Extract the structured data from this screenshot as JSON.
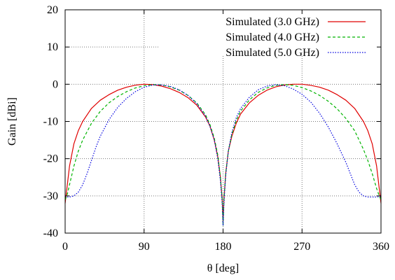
{
  "chart_data": {
    "type": "line",
    "title": "",
    "xlabel": "θ   [deg]",
    "ylabel": "Gain   [dBi]",
    "xlim": [
      0,
      360
    ],
    "ylim": [
      -40,
      20
    ],
    "xticks": [
      0,
      90,
      180,
      270,
      360
    ],
    "yticks": [
      -40,
      -30,
      -20,
      -10,
      0,
      10,
      20
    ],
    "grid": true,
    "legend_position": "top-right",
    "series": [
      {
        "name": "Simulated (3.0 GHz)",
        "color": "#e00000",
        "dash": "solid",
        "x": [
          0,
          2,
          5,
          10,
          15,
          20,
          30,
          40,
          50,
          60,
          70,
          80,
          90,
          100,
          110,
          120,
          130,
          140,
          150,
          160,
          165,
          170,
          174,
          177,
          179,
          180,
          181,
          183,
          186,
          190,
          195,
          200,
          210,
          220,
          230,
          240,
          250,
          260,
          270,
          280,
          290,
          300,
          310,
          320,
          330,
          340,
          345,
          350,
          355,
          358,
          360
        ],
        "y": [
          -32,
          -28,
          -22,
          -16,
          -12.5,
          -10,
          -6.5,
          -4.3,
          -2.8,
          -1.6,
          -0.8,
          -0.25,
          0,
          -0.1,
          -0.5,
          -1.2,
          -2.2,
          -3.6,
          -5.6,
          -8.8,
          -11.2,
          -15,
          -19.5,
          -25,
          -31,
          -37,
          -31,
          -24,
          -18,
          -14,
          -10.5,
          -8,
          -5,
          -3,
          -1.6,
          -0.7,
          -0.2,
          0,
          0,
          -0.3,
          -0.8,
          -1.6,
          -2.8,
          -4.3,
          -6.5,
          -10,
          -12.5,
          -16,
          -22,
          -28,
          -32
        ]
      },
      {
        "name": "Simulated (4.0 GHz)",
        "color": "#00b400",
        "dash": "dashed",
        "x": [
          0,
          2,
          5,
          10,
          15,
          20,
          30,
          40,
          50,
          60,
          70,
          80,
          90,
          100,
          110,
          120,
          130,
          140,
          150,
          160,
          165,
          170,
          174,
          177,
          179,
          180,
          181,
          183,
          186,
          190,
          195,
          200,
          210,
          220,
          230,
          240,
          250,
          260,
          270,
          280,
          290,
          300,
          310,
          320,
          330,
          340,
          345,
          350,
          355,
          358,
          360
        ],
        "y": [
          -31,
          -30,
          -27,
          -22,
          -18,
          -15,
          -10.5,
          -7.3,
          -5,
          -3.3,
          -2,
          -1,
          -0.4,
          -0.1,
          -0.2,
          -0.7,
          -1.6,
          -3,
          -5,
          -8.2,
          -10.8,
          -14.5,
          -19,
          -25,
          -31,
          -38,
          -31,
          -24,
          -18,
          -13.5,
          -9.8,
          -7.2,
          -4.2,
          -2.2,
          -1,
          -0.3,
          -0.1,
          -0.3,
          -0.9,
          -1.8,
          -3,
          -4.6,
          -6.6,
          -9.2,
          -12.5,
          -17.5,
          -20.5,
          -24,
          -28,
          -30,
          -31
        ]
      },
      {
        "name": "Simulated (5.0 GHz)",
        "color": "#0000e0",
        "dash": "dotted",
        "x": [
          0,
          2,
          5,
          10,
          15,
          20,
          25,
          30,
          35,
          40,
          50,
          60,
          70,
          80,
          90,
          100,
          110,
          120,
          130,
          140,
          150,
          160,
          165,
          170,
          174,
          177,
          179,
          180,
          181,
          183,
          186,
          190,
          195,
          200,
          210,
          220,
          230,
          240,
          250,
          260,
          270,
          280,
          290,
          300,
          310,
          320,
          325,
          330,
          335,
          340,
          345,
          350,
          355,
          358,
          360
        ],
        "y": [
          -30,
          -30.3,
          -30.3,
          -30,
          -29,
          -27,
          -24,
          -20.5,
          -17,
          -14,
          -9.5,
          -6.2,
          -3.8,
          -2,
          -0.8,
          -0.2,
          -0.2,
          -0.6,
          -1.5,
          -3,
          -5.2,
          -8.6,
          -11.3,
          -15,
          -20,
          -26,
          -32,
          -38,
          -32,
          -24.5,
          -18,
          -13,
          -9,
          -6.5,
          -3.5,
          -1.5,
          -0.5,
          -0.1,
          -0.4,
          -1.3,
          -2.7,
          -4.8,
          -7.8,
          -11.5,
          -16,
          -21,
          -24,
          -27,
          -29,
          -30,
          -30.3,
          -30.3,
          -30.3,
          -30.2,
          -30
        ]
      }
    ]
  }
}
